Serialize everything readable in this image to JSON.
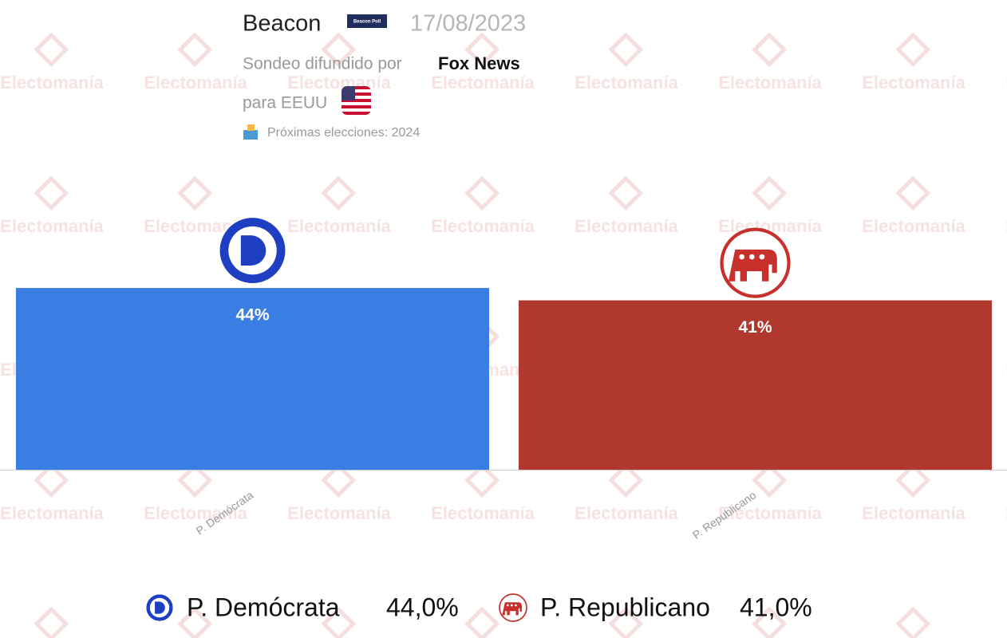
{
  "header": {
    "pollster": "Beacon",
    "pollster_logo_text": "Beacon Poll",
    "date": "17/08/2023",
    "published_by_label": "Sondeo difundido por",
    "published_by": "Fox News",
    "country_label": "para EEUU",
    "next_elections": "Próximas elecciones: 2024"
  },
  "watermark": "Electomanía",
  "chart_data": {
    "type": "bar",
    "categories": [
      "P. Demócrata",
      "P. Republicano"
    ],
    "values": [
      44,
      41
    ],
    "value_labels": [
      "44%",
      "41%"
    ],
    "legend_value_labels": [
      "44,0%",
      "41,0%"
    ],
    "colors": [
      "#3b7ee3",
      "#b0382f"
    ],
    "ylim": [
      0,
      50
    ]
  }
}
